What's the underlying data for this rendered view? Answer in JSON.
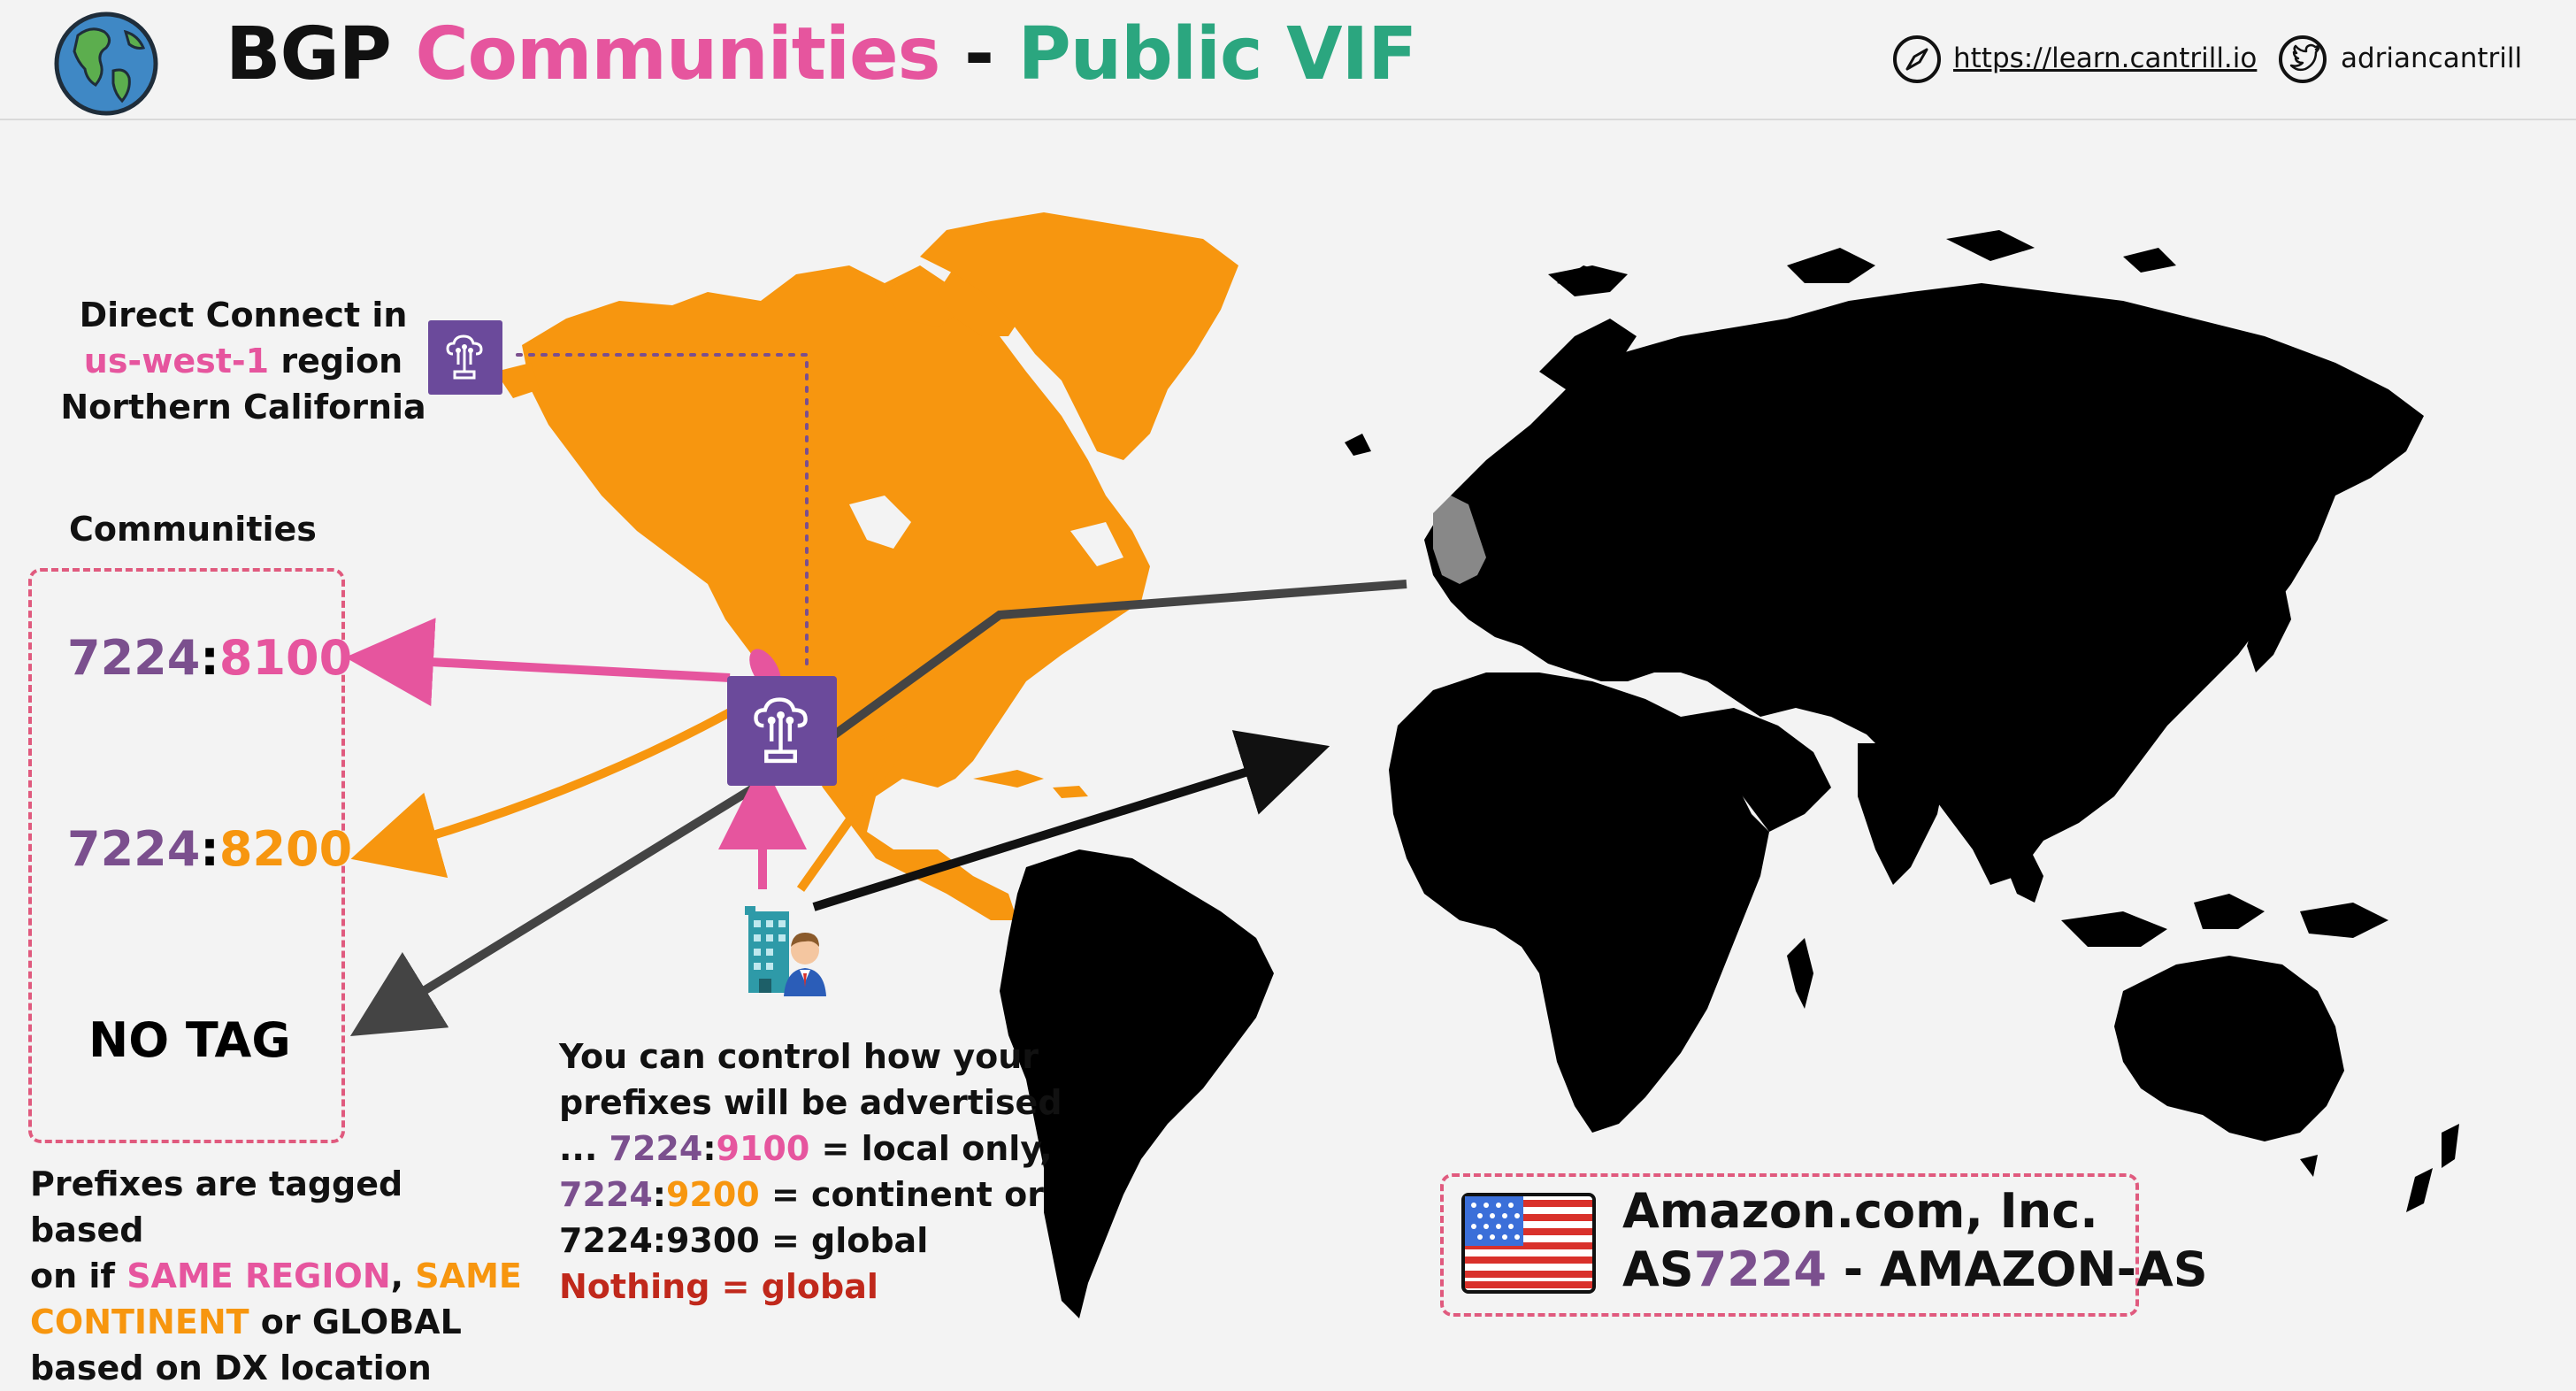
{
  "header": {
    "title_bgp": "BGP",
    "title_communities": "Communities",
    "title_sep": "-",
    "title_vif": "Public VIF",
    "link_url": "https://learn.cantrill.io",
    "twitter_handle": "adriancantrill"
  },
  "dx_label": {
    "line1": "Direct Connect in",
    "region": "us-west-1",
    "region_suffix": " region",
    "line3": "Northern California"
  },
  "communities": {
    "heading": "Communities",
    "items": [
      {
        "asn": "7224",
        "colon": ":",
        "value": "8100"
      },
      {
        "asn": "7224",
        "colon": ":",
        "value": "8200"
      }
    ],
    "no_tag": "NO TAG"
  },
  "prefix_note": {
    "l1": "Prefixes are tagged based",
    "l2a": "on if ",
    "same_region": "SAME REGION",
    "l2b": ", ",
    "same": "SAME",
    "continent": "CONTINENT",
    "l3b": " or GLOBAL",
    "l4": "based on DX location"
  },
  "control_note": {
    "l1": "You can control how your",
    "l2": "prefixes will be advertised",
    "l3a": "... ",
    "c1_asn": "7224",
    "c1_colon": ":",
    "c1_val": "9100",
    "c1_desc": " = local only,",
    "c2_asn": "7224",
    "c2_colon": ":",
    "c2_val": "9200",
    "c2_desc": " = continent or",
    "c3": "7224:9300 = global",
    "nothing": "Nothing = global"
  },
  "amazon": {
    "name": "Amazon.com, Inc.",
    "as_prefix": "AS",
    "as_num": "7224",
    "as_suffix": " - AMAZON-AS"
  },
  "colors": {
    "pink": "#e6559e",
    "orange": "#f7960f",
    "purple": "#7b4f8e",
    "green": "#2ba67f",
    "dark_arrow": "#444444"
  }
}
